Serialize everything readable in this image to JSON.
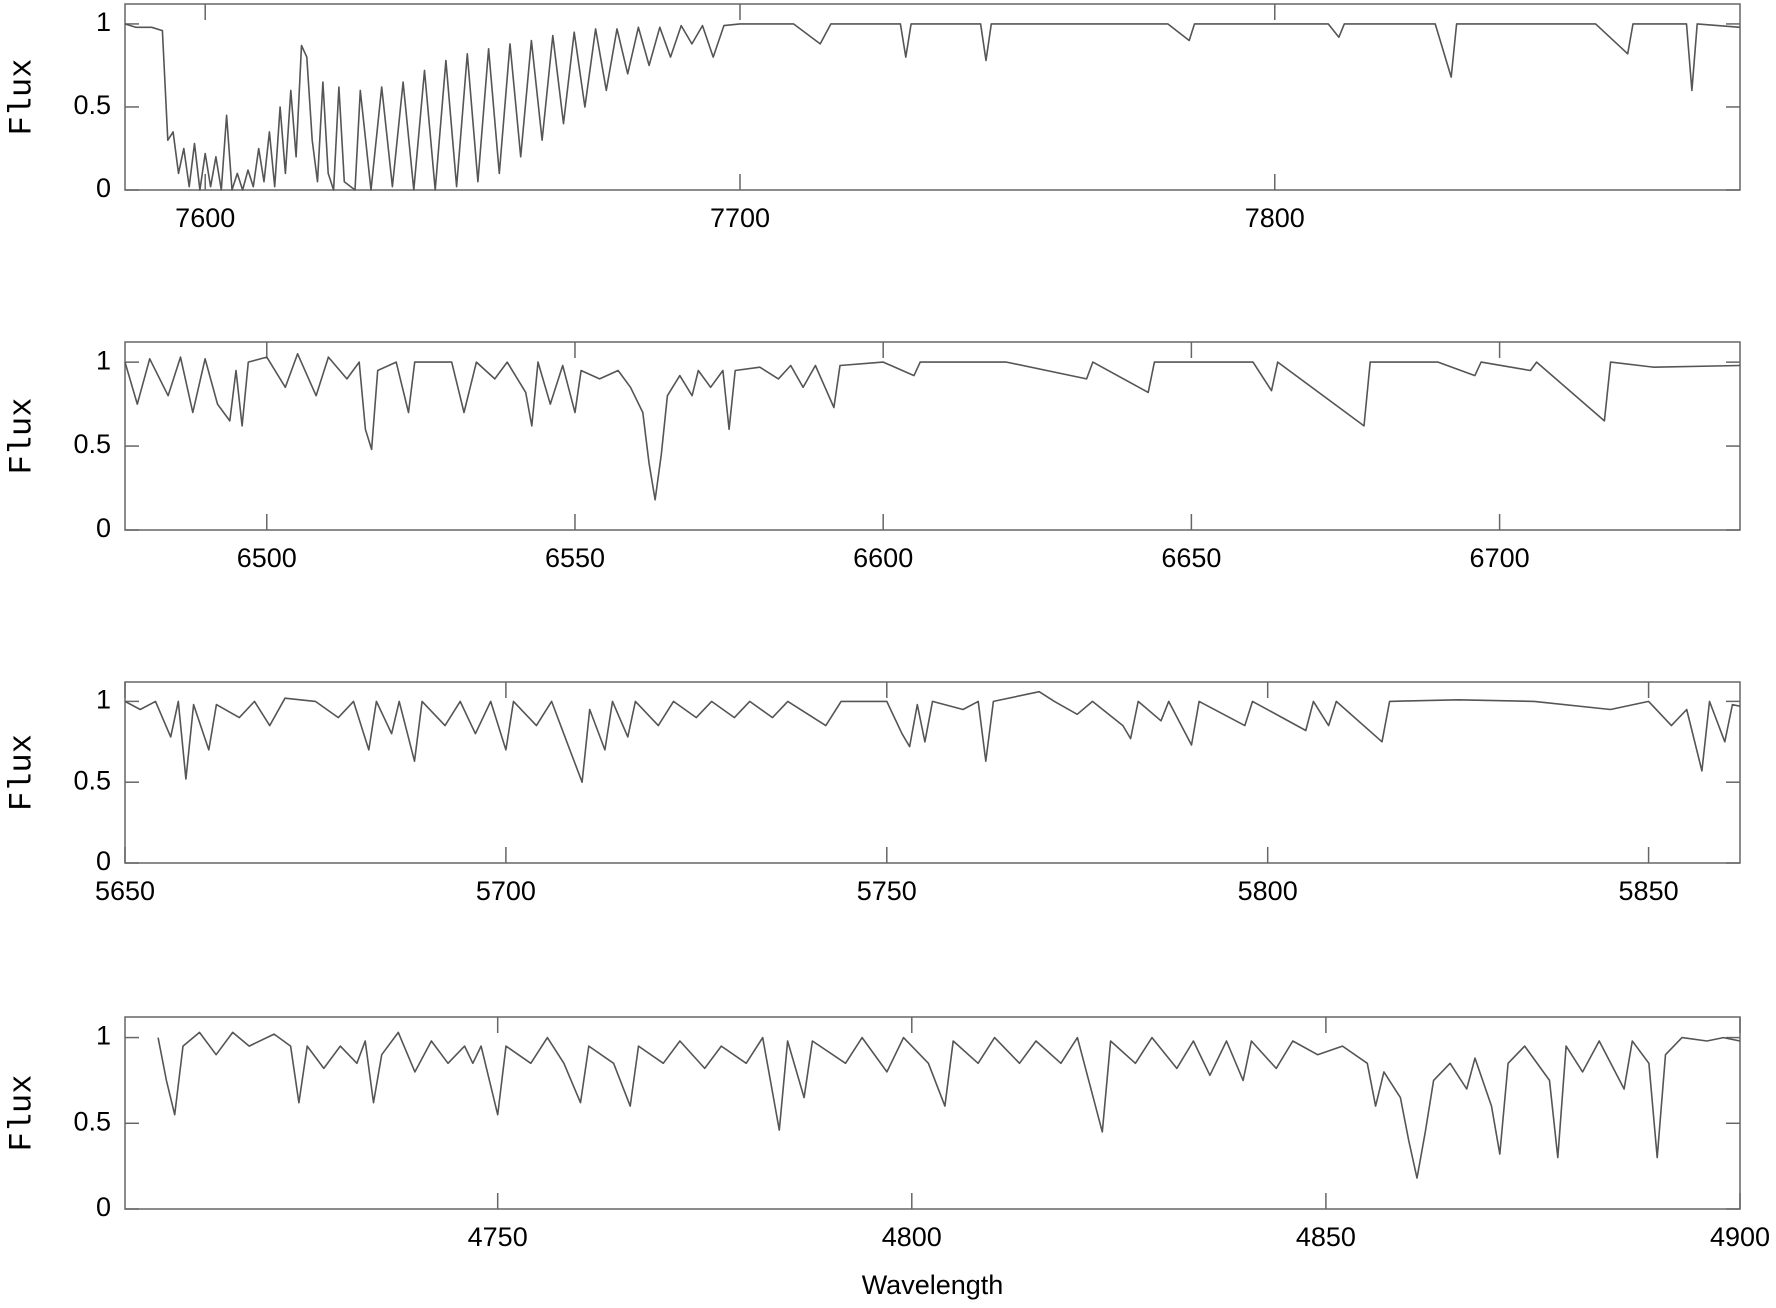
{
  "chart_data": [
    {
      "type": "line",
      "ylabel": "Flux",
      "color": "#555555",
      "xlim": [
        7585,
        7887
      ],
      "ylim": [
        0,
        1.12
      ],
      "xticks": [
        7600,
        7700,
        7800
      ],
      "yticks": [
        0,
        0.5,
        1
      ],
      "x": [
        7585,
        7587,
        7590,
        7592,
        7593,
        7594,
        7595,
        7596,
        7597,
        7598,
        7599,
        7600,
        7601,
        7602,
        7603,
        7604,
        7605,
        7606,
        7607,
        7608,
        7609,
        7610,
        7611,
        7612,
        7613,
        7614,
        7615,
        7616,
        7617,
        7618,
        7619,
        7620,
        7621,
        7622,
        7623,
        7624,
        7625,
        7626,
        7628,
        7629,
        7631,
        7633,
        7635,
        7637,
        7639,
        7641,
        7643,
        7645,
        7647,
        7649,
        7651,
        7653,
        7655,
        7657,
        7659,
        7661,
        7663,
        7665,
        7667,
        7669,
        7671,
        7673,
        7675,
        7677,
        7679,
        7681,
        7683,
        7685,
        7687,
        7689,
        7691,
        7693,
        7695,
        7697,
        7700,
        7710,
        7715,
        7717,
        7730,
        7731,
        7732,
        7745,
        7746,
        7747,
        7760,
        7780,
        7784,
        7785,
        7800,
        7810,
        7812,
        7813,
        7830,
        7833,
        7834,
        7850,
        7860,
        7866,
        7867,
        7877,
        7878,
        7879,
        7887
      ],
      "values": [
        1.0,
        0.98,
        0.98,
        0.96,
        0.3,
        0.35,
        0.1,
        0.25,
        0.02,
        0.28,
        0.0,
        0.22,
        0.02,
        0.2,
        0.0,
        0.45,
        0.0,
        0.1,
        0.0,
        0.12,
        0.02,
        0.25,
        0.05,
        0.35,
        0.02,
        0.5,
        0.1,
        0.6,
        0.2,
        0.87,
        0.8,
        0.3,
        0.05,
        0.65,
        0.1,
        0.0,
        0.62,
        0.05,
        0.0,
        0.6,
        0.0,
        0.62,
        0.02,
        0.65,
        0.0,
        0.72,
        0.0,
        0.78,
        0.02,
        0.82,
        0.05,
        0.85,
        0.1,
        0.88,
        0.2,
        0.9,
        0.3,
        0.93,
        0.4,
        0.95,
        0.5,
        0.97,
        0.6,
        0.97,
        0.7,
        0.98,
        0.75,
        0.98,
        0.8,
        0.99,
        0.88,
        0.99,
        0.8,
        0.99,
        1.0,
        1.0,
        0.88,
        1.0,
        1.0,
        0.8,
        1.0,
        1.0,
        0.78,
        1.0,
        1.0,
        1.0,
        0.9,
        1.0,
        1.0,
        1.0,
        0.92,
        1.0,
        1.0,
        0.68,
        1.0,
        1.0,
        1.0,
        0.82,
        1.0,
        1.0,
        0.6,
        1.0,
        0.98
      ]
    },
    {
      "type": "line",
      "ylabel": "Flux",
      "color": "#555555",
      "xlim": [
        6477,
        6739
      ],
      "ylim": [
        0,
        1.12
      ],
      "xticks": [
        6500,
        6550,
        6600,
        6650,
        6700
      ],
      "yticks": [
        0,
        0.5,
        1
      ],
      "x": [
        6477,
        6479,
        6481,
        6484,
        6486,
        6488,
        6490,
        6492,
        6494,
        6495,
        6496,
        6497,
        6500,
        6503,
        6505,
        6508,
        6510,
        6513,
        6515,
        6516,
        6517,
        6518,
        6521,
        6523,
        6524,
        6530,
        6532,
        6534,
        6537,
        6539,
        6542,
        6543,
        6544,
        6546,
        6548,
        6550,
        6551,
        6554,
        6557,
        6559,
        6561,
        6562,
        6563,
        6564,
        6565,
        6567,
        6569,
        6570,
        6572,
        6574,
        6575,
        6576,
        6580,
        6583,
        6585,
        6587,
        6589,
        6592,
        6593,
        6600,
        6605,
        6606,
        6620,
        6633,
        6634,
        6643,
        6644,
        6660,
        6663,
        6664,
        6678,
        6679,
        6690,
        6696,
        6697,
        6705,
        6706,
        6717,
        6718,
        6725,
        6739
      ],
      "values": [
        1.0,
        0.75,
        1.02,
        0.8,
        1.03,
        0.7,
        1.02,
        0.75,
        0.65,
        0.95,
        0.62,
        1.0,
        1.03,
        0.85,
        1.05,
        0.8,
        1.03,
        0.9,
        1.0,
        0.6,
        0.48,
        0.95,
        1.0,
        0.7,
        1.0,
        1.0,
        0.7,
        1.0,
        0.9,
        1.0,
        0.82,
        0.62,
        1.0,
        0.75,
        0.98,
        0.7,
        0.95,
        0.9,
        0.95,
        0.85,
        0.7,
        0.4,
        0.18,
        0.45,
        0.8,
        0.92,
        0.8,
        0.95,
        0.85,
        0.95,
        0.6,
        0.95,
        0.97,
        0.9,
        0.98,
        0.85,
        0.98,
        0.73,
        0.98,
        1.0,
        0.92,
        1.0,
        1.0,
        0.9,
        1.0,
        0.82,
        1.0,
        1.0,
        0.83,
        1.0,
        0.62,
        1.0,
        1.0,
        0.92,
        1.0,
        0.95,
        1.0,
        0.65,
        1.0,
        0.97,
        0.98
      ]
    },
    {
      "type": "line",
      "ylabel": "Flux",
      "color": "#555555",
      "xlim": [
        5650,
        5862
      ],
      "ylim": [
        0,
        1.12
      ],
      "xticks": [
        5650,
        5700,
        5750,
        5800,
        5850
      ],
      "yticks": [
        0,
        0.5,
        1
      ],
      "x": [
        5650,
        5652,
        5654,
        5656,
        5657,
        5658,
        5659,
        5661,
        5662,
        5665,
        5667,
        5669,
        5671,
        5675,
        5678,
        5680,
        5682,
        5683,
        5685,
        5686,
        5688,
        5689,
        5692,
        5694,
        5696,
        5698,
        5700,
        5701,
        5704,
        5706,
        5708,
        5710,
        5711,
        5713,
        5714,
        5716,
        5717,
        5720,
        5722,
        5725,
        5727,
        5730,
        5732,
        5735,
        5737,
        5742,
        5744,
        5750,
        5752,
        5753,
        5754,
        5755,
        5756,
        5760,
        5762,
        5763,
        5764,
        5770,
        5772,
        5775,
        5777,
        5781,
        5782,
        5783,
        5786,
        5787,
        5790,
        5791,
        5797,
        5798,
        5805,
        5806,
        5808,
        5809,
        5815,
        5816,
        5825,
        5835,
        5845,
        5850,
        5853,
        5855,
        5857,
        5858,
        5860,
        5861,
        5862
      ],
      "values": [
        1.0,
        0.95,
        1.0,
        0.78,
        1.0,
        0.52,
        0.98,
        0.7,
        0.98,
        0.9,
        1.0,
        0.85,
        1.02,
        1.0,
        0.9,
        1.0,
        0.7,
        1.0,
        0.8,
        1.0,
        0.63,
        1.0,
        0.85,
        1.0,
        0.8,
        1.0,
        0.7,
        1.0,
        0.85,
        1.0,
        0.75,
        0.5,
        0.95,
        0.7,
        1.0,
        0.78,
        1.0,
        0.85,
        1.0,
        0.9,
        1.0,
        0.9,
        1.0,
        0.9,
        1.0,
        0.85,
        1.0,
        1.0,
        0.8,
        0.72,
        0.98,
        0.75,
        1.0,
        0.95,
        1.0,
        0.63,
        1.0,
        1.06,
        1.0,
        0.92,
        1.0,
        0.85,
        0.77,
        1.0,
        0.88,
        1.0,
        0.73,
        1.0,
        0.85,
        1.0,
        0.82,
        1.0,
        0.85,
        1.0,
        0.75,
        1.0,
        1.01,
        1.0,
        0.95,
        1.0,
        0.85,
        0.95,
        0.57,
        1.0,
        0.75,
        0.98,
        0.97
      ]
    },
    {
      "type": "line",
      "ylabel": "Flux",
      "xlabel": "Wavelength",
      "color": "#555555",
      "xlim": [
        4705,
        4900
      ],
      "ylim": [
        0,
        1.12
      ],
      "xticks": [
        4750,
        4800,
        4850,
        4900
      ],
      "yticks": [
        0,
        0.5,
        1
      ],
      "x": [
        4709,
        4710,
        4711,
        4712,
        4714,
        4716,
        4718,
        4720,
        4723,
        4725,
        4726,
        4727,
        4729,
        4731,
        4733,
        4734,
        4735,
        4736,
        4738,
        4740,
        4742,
        4744,
        4746,
        4747,
        4748,
        4750,
        4751,
        4754,
        4756,
        4758,
        4760,
        4761,
        4764,
        4766,
        4767,
        4770,
        4772,
        4775,
        4777,
        4780,
        4782,
        4784,
        4785,
        4787,
        4788,
        4792,
        4794,
        4797,
        4799,
        4802,
        4804,
        4805,
        4808,
        4810,
        4813,
        4815,
        4818,
        4820,
        4823,
        4824,
        4827,
        4829,
        4832,
        4834,
        4836,
        4838,
        4840,
        4841,
        4844,
        4846,
        4849,
        4852,
        4855,
        4856,
        4857,
        4859,
        4860,
        4861,
        4862,
        4863,
        4865,
        4867,
        4868,
        4870,
        4871,
        4872,
        4874,
        4877,
        4878,
        4879,
        4881,
        4883,
        4886,
        4887,
        4889,
        4890,
        4891,
        4893,
        4896,
        4898,
        4900
      ],
      "values": [
        1.0,
        0.75,
        0.55,
        0.95,
        1.03,
        0.9,
        1.03,
        0.95,
        1.02,
        0.95,
        0.62,
        0.95,
        0.82,
        0.95,
        0.85,
        0.98,
        0.62,
        0.9,
        1.03,
        0.8,
        0.98,
        0.85,
        0.95,
        0.85,
        0.95,
        0.55,
        0.95,
        0.85,
        1.0,
        0.85,
        0.62,
        0.95,
        0.85,
        0.6,
        0.95,
        0.85,
        0.98,
        0.82,
        0.95,
        0.85,
        1.0,
        0.46,
        0.98,
        0.65,
        0.98,
        0.85,
        1.0,
        0.8,
        1.0,
        0.85,
        0.6,
        0.98,
        0.85,
        1.0,
        0.85,
        0.98,
        0.85,
        1.0,
        0.45,
        0.98,
        0.85,
        1.0,
        0.82,
        0.98,
        0.78,
        0.98,
        0.75,
        0.98,
        0.82,
        0.98,
        0.9,
        0.95,
        0.85,
        0.6,
        0.8,
        0.65,
        0.4,
        0.18,
        0.45,
        0.75,
        0.85,
        0.7,
        0.88,
        0.6,
        0.32,
        0.85,
        0.95,
        0.75,
        0.3,
        0.95,
        0.8,
        0.98,
        0.7,
        0.98,
        0.85,
        0.3,
        0.9,
        1.0,
        0.98,
        1.0,
        0.98
      ]
    }
  ]
}
